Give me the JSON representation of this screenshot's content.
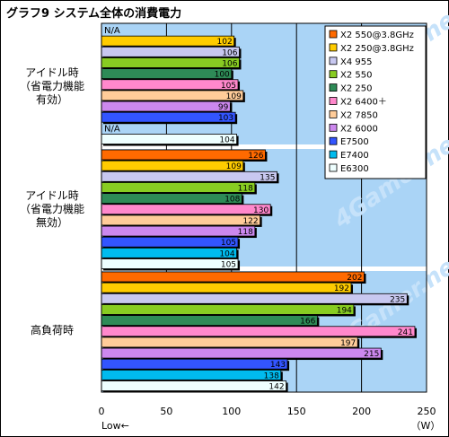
{
  "title": "グラフ9  システム全体の消費電力",
  "chart_data": {
    "type": "bar",
    "orientation": "horizontal",
    "xlim": [
      0,
      250
    ],
    "xticks": [
      0,
      50,
      100,
      150,
      200,
      250
    ],
    "x_unit_label": "（W）",
    "low_label": "Low←",
    "watermark": "4Gamer.net",
    "groups": [
      {
        "label": [
          "アイドル時",
          "（省電力機能",
          "有効）"
        ],
        "values": [
          null,
          102,
          106,
          106,
          100,
          105,
          109,
          99,
          103,
          null,
          104
        ]
      },
      {
        "label": [
          "アイドル時",
          "（省電力機能",
          "無効）"
        ],
        "values": [
          126,
          109,
          135,
          118,
          108,
          130,
          122,
          118,
          105,
          104,
          105
        ]
      },
      {
        "label": [
          "高負荷時"
        ],
        "values": [
          202,
          192,
          235,
          194,
          166,
          241,
          197,
          215,
          143,
          138,
          142
        ]
      }
    ],
    "na_label": "N/A",
    "series": [
      {
        "name": "X2 550@3.8GHz",
        "color": "#ff6a00"
      },
      {
        "name": "X2 250@3.8GHz",
        "color": "#ffcc00"
      },
      {
        "name": "X4 955",
        "color": "#c8c8f0"
      },
      {
        "name": "X2 550",
        "color": "#88cc22"
      },
      {
        "name": "X2 250",
        "color": "#2e8b57"
      },
      {
        "name": "X2 6400＋",
        "color": "#ff88cc"
      },
      {
        "name": "X2 7850",
        "color": "#ffcc99"
      },
      {
        "name": "X2 6000",
        "color": "#cc88ee"
      },
      {
        "name": "E7500",
        "color": "#3355ff"
      },
      {
        "name": "E7400",
        "color": "#00bbee"
      },
      {
        "name": "E6300",
        "color": "#eeffff"
      }
    ]
  }
}
